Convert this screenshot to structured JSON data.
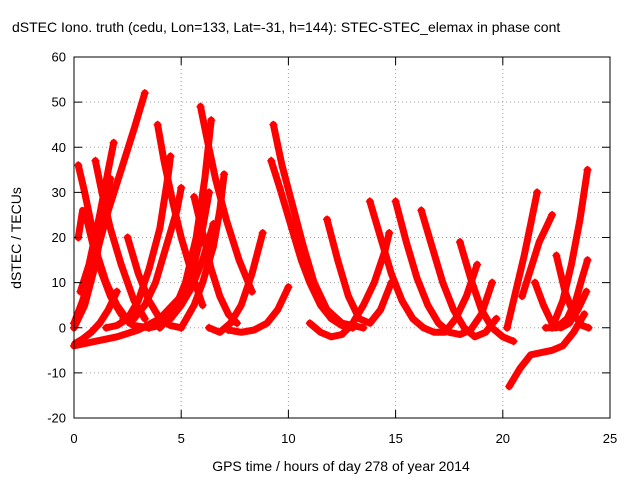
{
  "chart_data": {
    "type": "scatter",
    "title": "dSTEC Iono. truth (cedu, Lon=133, Lat=-31, h=144): STEC-STEC_elemax in phase cont",
    "xlabel": "GPS time / hours of day 278 of year 2014",
    "ylabel": "dSTEC  / TECUs",
    "xlim": [
      0,
      25
    ],
    "ylim": [
      -20,
      60
    ],
    "xticks": [
      0,
      5,
      10,
      15,
      20,
      25
    ],
    "yticks": [
      -20,
      -10,
      0,
      10,
      20,
      30,
      40,
      50,
      60
    ],
    "grid": true,
    "legend": "none",
    "marker": "plus",
    "color": "#ff0000",
    "series": [
      {
        "x": [
          0.05,
          0.4,
          0.8,
          1.2,
          1.6,
          2.0
        ],
        "y": [
          -3.5,
          -2.5,
          -1,
          1,
          4,
          8
        ]
      },
      {
        "x": [
          0.2,
          0.5,
          0.8,
          1.1,
          1.5,
          2.0,
          2.6,
          3.0
        ],
        "y": [
          36,
          30,
          23,
          16,
          10,
          5,
          1,
          0
        ]
      },
      {
        "x": [
          0.0,
          0.4,
          0.8,
          1.2,
          1.6,
          2.2,
          2.8,
          3.3
        ],
        "y": [
          1,
          6,
          12,
          19,
          26,
          35,
          44,
          52
        ]
      },
      {
        "x": [
          1.0,
          1.3,
          1.7,
          2.2,
          2.8,
          3.3
        ],
        "y": [
          37,
          30,
          22,
          14,
          6,
          2
        ]
      },
      {
        "x": [
          0.3,
          0.7,
          1.2,
          1.6,
          1.85
        ],
        "y": [
          8,
          14,
          25,
          35,
          41
        ]
      },
      {
        "x": [
          0.0,
          0.5,
          1.0,
          1.4,
          1.7
        ],
        "y": [
          0,
          5,
          14,
          25,
          33
        ]
      },
      {
        "x": [
          0.2,
          0.4,
          0.6,
          0.9,
          1.3,
          1.7,
          2.2,
          2.8,
          3.5
        ],
        "y": [
          20,
          26,
          24,
          18,
          12,
          7,
          3,
          0.5,
          0
        ]
      },
      {
        "x": [
          3.9,
          4.2,
          4.6,
          5.0,
          5.5,
          6.0
        ],
        "y": [
          45,
          37,
          28,
          20,
          12,
          5
        ]
      },
      {
        "x": [
          1.5,
          2.0,
          2.5,
          3.0,
          3.5,
          4.0,
          4.4,
          4.5
        ],
        "y": [
          0,
          0.5,
          2,
          6,
          13,
          22,
          34,
          38
        ]
      },
      {
        "x": [
          2.5,
          3.0,
          3.5,
          4.0,
          4.5,
          5.0
        ],
        "y": [
          20,
          12,
          6,
          2,
          0.5,
          0
        ]
      },
      {
        "x": [
          0.0,
          1.0,
          2.0,
          3.0,
          4.0,
          5.0,
          5.5,
          6.0,
          6.3
        ],
        "y": [
          -4,
          -3,
          -2,
          -0.5,
          2,
          7,
          12,
          22,
          30
        ]
      },
      {
        "x": [
          3.5,
          4.0,
          4.5,
          5.0,
          5.5,
          6.0,
          6.5
        ],
        "y": [
          0,
          0.5,
          2,
          5,
          9,
          15,
          23
        ]
      },
      {
        "x": [
          2.3,
          2.8,
          3.3,
          3.8,
          4.3,
          4.8,
          5.0
        ],
        "y": [
          2,
          2,
          5,
          10,
          18,
          26,
          31
        ]
      },
      {
        "x": [
          5.6,
          5.8,
          6.1,
          6.4,
          6.8,
          7.2,
          7.6
        ],
        "y": [
          29,
          25,
          19,
          13,
          7,
          3,
          1
        ]
      },
      {
        "x": [
          5.9,
          6.2,
          6.6,
          7.1,
          7.7,
          8.3
        ],
        "y": [
          49,
          42,
          33,
          24,
          15,
          8
        ]
      },
      {
        "x": [
          4.0,
          4.6,
          5.2,
          5.7,
          6.1,
          6.4
        ],
        "y": [
          0,
          3,
          10,
          20,
          33,
          46
        ]
      },
      {
        "x": [
          5.0,
          5.6,
          6.0,
          6.5,
          6.8,
          7.0
        ],
        "y": [
          0,
          5,
          10,
          18,
          26,
          34
        ]
      },
      {
        "x": [
          6.3,
          6.8,
          7.3,
          7.8,
          8.3,
          8.8
        ],
        "y": [
          0,
          -1,
          1,
          5,
          12,
          21
        ]
      },
      {
        "x": [
          9.3,
          9.7,
          10.2,
          10.7,
          11.2,
          11.8,
          12.5,
          13.5
        ],
        "y": [
          45,
          36,
          27,
          18,
          10,
          4,
          1,
          0
        ]
      },
      {
        "x": [
          9.2,
          9.6,
          10.1,
          10.6,
          11.0,
          11.5,
          12.0,
          12.5,
          13.0
        ],
        "y": [
          37,
          31,
          23,
          15,
          10,
          5,
          2,
          0.5,
          0
        ]
      },
      {
        "x": [
          7.2,
          7.8,
          8.4,
          9.0,
          9.5,
          10.0
        ],
        "y": [
          -0.5,
          -1,
          -0.5,
          1,
          4,
          9
        ]
      },
      {
        "x": [
          11.8,
          12.3,
          12.8,
          13.3,
          13.8,
          14.3,
          14.8
        ],
        "y": [
          24,
          15,
          7,
          2,
          1,
          4,
          10
        ]
      },
      {
        "x": [
          11.0,
          11.5,
          12.0,
          12.5,
          13.0,
          13.5,
          14.0,
          14.5,
          14.7
        ],
        "y": [
          1,
          -1,
          -2,
          -1.5,
          1,
          5,
          10,
          17,
          21
        ]
      },
      {
        "x": [
          13.8,
          14.3,
          14.8,
          15.3,
          15.8,
          16.3,
          16.8,
          17.3,
          17.8,
          18.3,
          18.8
        ],
        "y": [
          28,
          20,
          12,
          6,
          2,
          0,
          -1,
          -1,
          2,
          7,
          14
        ]
      },
      {
        "x": [
          15.0,
          15.5,
          16.0,
          16.5,
          17.0,
          17.5,
          18.0,
          18.5,
          19.0,
          19.5
        ],
        "y": [
          28,
          19,
          11,
          5,
          1,
          -1,
          -1.5,
          -0.5,
          3,
          10
        ]
      },
      {
        "x": [
          16.2,
          16.7,
          17.2,
          17.7,
          18.2,
          18.7,
          19.2,
          19.7
        ],
        "y": [
          26,
          18,
          10,
          4,
          0,
          -2,
          -1,
          2
        ]
      },
      {
        "x": [
          18.0,
          18.5,
          19.0,
          19.5,
          20.0,
          20.5
        ],
        "y": [
          19,
          11,
          4,
          0,
          -2,
          -3
        ]
      },
      {
        "x": [
          20.2,
          20.6,
          21.0,
          21.3,
          21.6
        ],
        "y": [
          0,
          8,
          16,
          23,
          30
        ]
      },
      {
        "x": [
          20.3,
          20.8,
          21.3,
          21.8,
          22.3,
          22.8,
          23.3,
          23.8
        ],
        "y": [
          -13,
          -9,
          -6,
          -5.5,
          -5,
          -4,
          -1,
          3
        ]
      },
      {
        "x": [
          20.9,
          21.3,
          21.7,
          22.0,
          22.3
        ],
        "y": [
          7,
          13,
          19,
          22,
          25
        ]
      },
      {
        "x": [
          22.5,
          22.9,
          23.3,
          23.7,
          24.0
        ],
        "y": [
          16,
          8,
          3,
          0.5,
          0
        ]
      },
      {
        "x": [
          22.0,
          22.5,
          23.0,
          23.4,
          23.7,
          23.95
        ],
        "y": [
          0,
          0,
          2,
          6,
          11,
          15
        ]
      },
      {
        "x": [
          21.5,
          21.9,
          22.3,
          22.7,
          23.1,
          23.5,
          23.9
        ],
        "y": [
          10,
          5,
          1,
          0,
          1,
          4,
          8
        ]
      },
      {
        "x": [
          22.3,
          22.8,
          23.2,
          23.6,
          23.95
        ],
        "y": [
          0,
          6,
          14,
          24,
          35
        ]
      }
    ]
  }
}
